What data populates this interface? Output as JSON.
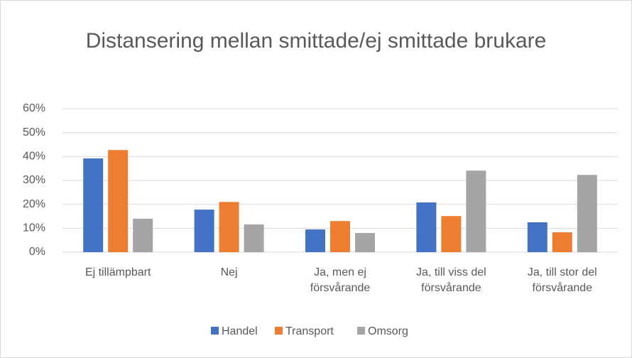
{
  "chart_data": {
    "type": "bar",
    "title": "Distansering mellan smittade/ej smittade brukare",
    "categories": [
      "Ej tillämpbart",
      "Nej",
      "Ja, men ej försvårande",
      "Ja, till viss del försvårande",
      "Ja, till stor del försvårande"
    ],
    "series": [
      {
        "name": "Handel",
        "color": "#4472c4",
        "values": [
          39.2,
          17.8,
          9.5,
          20.8,
          12.5
        ]
      },
      {
        "name": "Transport",
        "color": "#ed7d31",
        "values": [
          42.7,
          21,
          13,
          15.1,
          8.3
        ]
      },
      {
        "name": "Omsorg",
        "color": "#a5a5a5",
        "values": [
          14,
          11.6,
          8,
          34.1,
          32.3
        ]
      }
    ],
    "ylim": [
      0,
      60
    ],
    "yticks": [
      {
        "value": 0,
        "label": "0%"
      },
      {
        "value": 10,
        "label": "10%"
      },
      {
        "value": 20,
        "label": "20%"
      },
      {
        "value": 30,
        "label": "30%"
      },
      {
        "value": 40,
        "label": "40%"
      },
      {
        "value": 50,
        "label": "50%"
      },
      {
        "value": 60,
        "label": "60%"
      }
    ],
    "grid": true,
    "legend": "bottom"
  }
}
